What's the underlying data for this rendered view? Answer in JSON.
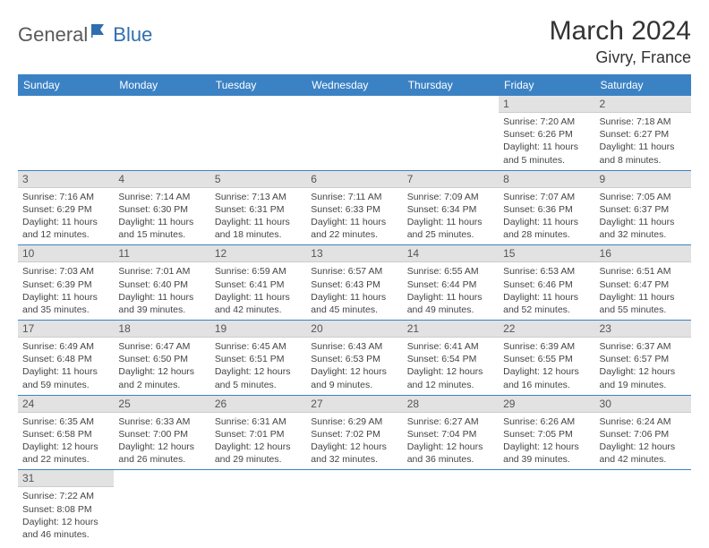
{
  "logo": {
    "text1": "General",
    "text2": "Blue"
  },
  "title": "March 2024",
  "location": "Givry, France",
  "colors": {
    "header_bg": "#3b82c4",
    "header_text": "#ffffff",
    "daynum_bg": "#e2e2e2",
    "row_border": "#3b82c4",
    "logo_blue": "#2f6fb0",
    "logo_gray": "#5a5a5a"
  },
  "dayNames": [
    "Sunday",
    "Monday",
    "Tuesday",
    "Wednesday",
    "Thursday",
    "Friday",
    "Saturday"
  ],
  "weeks": [
    [
      null,
      null,
      null,
      null,
      null,
      {
        "n": "1",
        "sr": "7:20 AM",
        "ss": "6:26 PM",
        "dl": "11 hours and 5 minutes."
      },
      {
        "n": "2",
        "sr": "7:18 AM",
        "ss": "6:27 PM",
        "dl": "11 hours and 8 minutes."
      }
    ],
    [
      {
        "n": "3",
        "sr": "7:16 AM",
        "ss": "6:29 PM",
        "dl": "11 hours and 12 minutes."
      },
      {
        "n": "4",
        "sr": "7:14 AM",
        "ss": "6:30 PM",
        "dl": "11 hours and 15 minutes."
      },
      {
        "n": "5",
        "sr": "7:13 AM",
        "ss": "6:31 PM",
        "dl": "11 hours and 18 minutes."
      },
      {
        "n": "6",
        "sr": "7:11 AM",
        "ss": "6:33 PM",
        "dl": "11 hours and 22 minutes."
      },
      {
        "n": "7",
        "sr": "7:09 AM",
        "ss": "6:34 PM",
        "dl": "11 hours and 25 minutes."
      },
      {
        "n": "8",
        "sr": "7:07 AM",
        "ss": "6:36 PM",
        "dl": "11 hours and 28 minutes."
      },
      {
        "n": "9",
        "sr": "7:05 AM",
        "ss": "6:37 PM",
        "dl": "11 hours and 32 minutes."
      }
    ],
    [
      {
        "n": "10",
        "sr": "7:03 AM",
        "ss": "6:39 PM",
        "dl": "11 hours and 35 minutes."
      },
      {
        "n": "11",
        "sr": "7:01 AM",
        "ss": "6:40 PM",
        "dl": "11 hours and 39 minutes."
      },
      {
        "n": "12",
        "sr": "6:59 AM",
        "ss": "6:41 PM",
        "dl": "11 hours and 42 minutes."
      },
      {
        "n": "13",
        "sr": "6:57 AM",
        "ss": "6:43 PM",
        "dl": "11 hours and 45 minutes."
      },
      {
        "n": "14",
        "sr": "6:55 AM",
        "ss": "6:44 PM",
        "dl": "11 hours and 49 minutes."
      },
      {
        "n": "15",
        "sr": "6:53 AM",
        "ss": "6:46 PM",
        "dl": "11 hours and 52 minutes."
      },
      {
        "n": "16",
        "sr": "6:51 AM",
        "ss": "6:47 PM",
        "dl": "11 hours and 55 minutes."
      }
    ],
    [
      {
        "n": "17",
        "sr": "6:49 AM",
        "ss": "6:48 PM",
        "dl": "11 hours and 59 minutes."
      },
      {
        "n": "18",
        "sr": "6:47 AM",
        "ss": "6:50 PM",
        "dl": "12 hours and 2 minutes."
      },
      {
        "n": "19",
        "sr": "6:45 AM",
        "ss": "6:51 PM",
        "dl": "12 hours and 5 minutes."
      },
      {
        "n": "20",
        "sr": "6:43 AM",
        "ss": "6:53 PM",
        "dl": "12 hours and 9 minutes."
      },
      {
        "n": "21",
        "sr": "6:41 AM",
        "ss": "6:54 PM",
        "dl": "12 hours and 12 minutes."
      },
      {
        "n": "22",
        "sr": "6:39 AM",
        "ss": "6:55 PM",
        "dl": "12 hours and 16 minutes."
      },
      {
        "n": "23",
        "sr": "6:37 AM",
        "ss": "6:57 PM",
        "dl": "12 hours and 19 minutes."
      }
    ],
    [
      {
        "n": "24",
        "sr": "6:35 AM",
        "ss": "6:58 PM",
        "dl": "12 hours and 22 minutes."
      },
      {
        "n": "25",
        "sr": "6:33 AM",
        "ss": "7:00 PM",
        "dl": "12 hours and 26 minutes."
      },
      {
        "n": "26",
        "sr": "6:31 AM",
        "ss": "7:01 PM",
        "dl": "12 hours and 29 minutes."
      },
      {
        "n": "27",
        "sr": "6:29 AM",
        "ss": "7:02 PM",
        "dl": "12 hours and 32 minutes."
      },
      {
        "n": "28",
        "sr": "6:27 AM",
        "ss": "7:04 PM",
        "dl": "12 hours and 36 minutes."
      },
      {
        "n": "29",
        "sr": "6:26 AM",
        "ss": "7:05 PM",
        "dl": "12 hours and 39 minutes."
      },
      {
        "n": "30",
        "sr": "6:24 AM",
        "ss": "7:06 PM",
        "dl": "12 hours and 42 minutes."
      }
    ],
    [
      {
        "n": "31",
        "sr": "7:22 AM",
        "ss": "8:08 PM",
        "dl": "12 hours and 46 minutes."
      },
      null,
      null,
      null,
      null,
      null,
      null
    ]
  ],
  "labels": {
    "sunrise": "Sunrise:",
    "sunset": "Sunset:",
    "daylight": "Daylight:"
  }
}
